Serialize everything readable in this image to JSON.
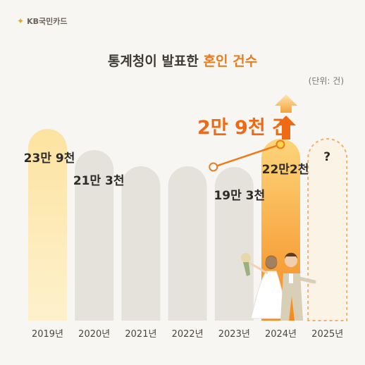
{
  "brand": {
    "logo_text": "KB국민카드"
  },
  "header": {
    "title_prefix": "통계청이 발표한 ",
    "title_highlight": "혼인 건수",
    "unit": "(단위: 건)"
  },
  "callout": {
    "text": "2만 9천 건"
  },
  "colors": {
    "highlight_bar_top": "#fdd57a",
    "highlight_bar_bottom": "#f58a1f",
    "gray_bar": "#e5e2dc",
    "first_bar_top": "#fde3a1",
    "first_bar_bottom": "#fdf1cd",
    "accent": "#f07a1a",
    "line": "#f07a1a"
  },
  "chart_data": {
    "type": "bar",
    "title": "통계청이 발표한 혼인 건수",
    "unit": "(단위: 건)",
    "categories": [
      "2019년",
      "2020년",
      "2021년",
      "2022년",
      "2023년",
      "2024년",
      "2025년"
    ],
    "values": [
      239000,
      213000,
      null,
      null,
      193000,
      222000,
      null
    ],
    "data_labels": [
      "23만 9천",
      "21만 3천",
      "",
      "",
      "19만 3천",
      "22만2천",
      "?"
    ],
    "annotation": "2만 9천 건",
    "trend_line_categories": [
      "2023년",
      "2024년"
    ],
    "icons": [
      "up-arrow-icon",
      "wedding-couple-illustration"
    ]
  }
}
